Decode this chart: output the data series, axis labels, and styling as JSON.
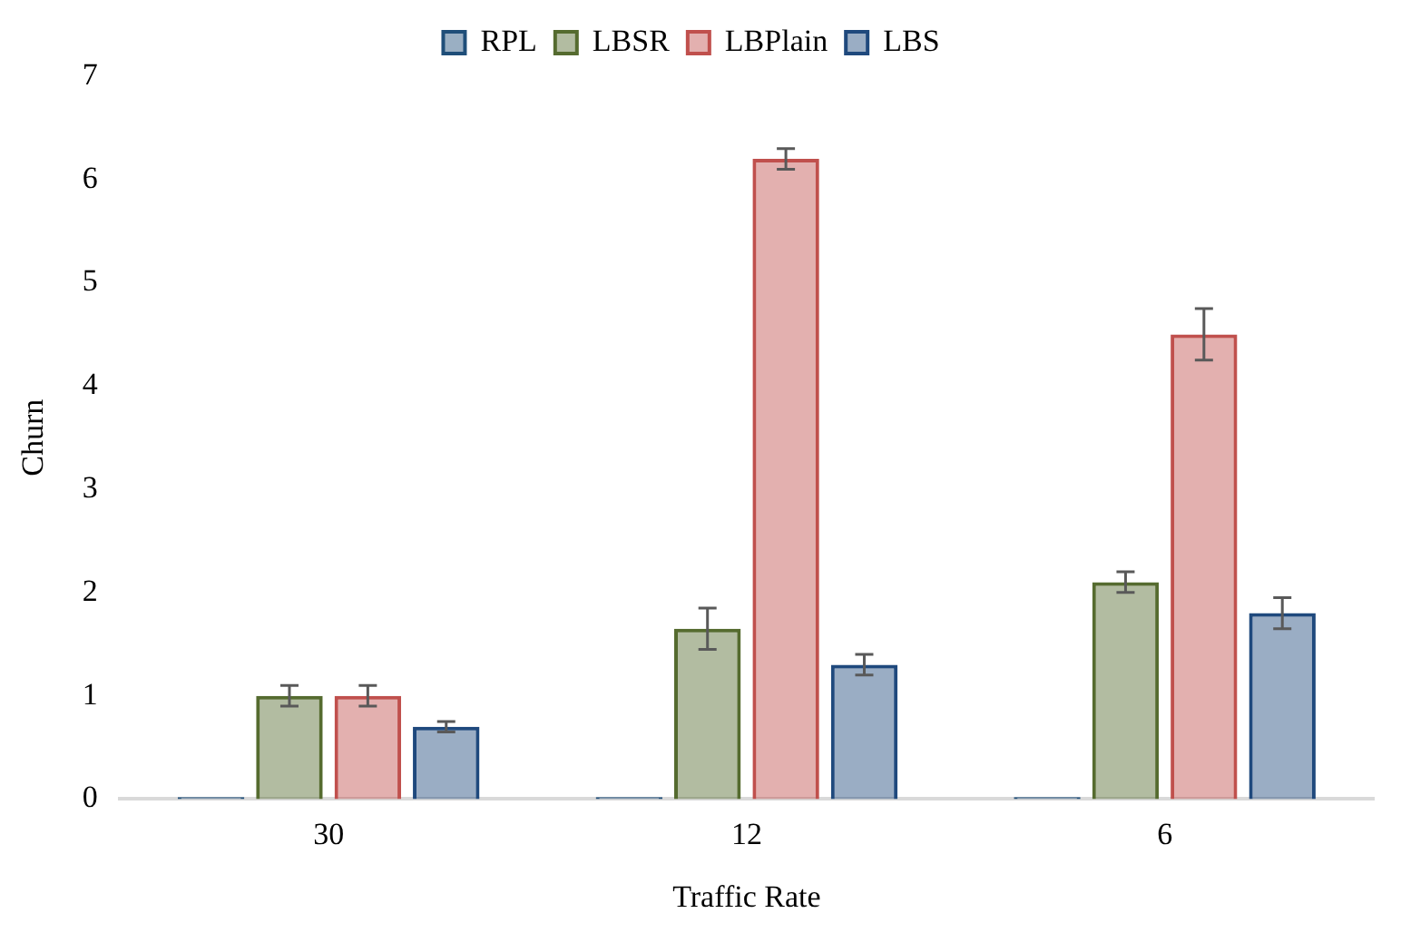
{
  "chart_data": {
    "type": "bar",
    "xlabel": "Traffic Rate",
    "ylabel": "Churn",
    "categories": [
      "30",
      "12",
      "6"
    ],
    "series": [
      {
        "name": "RPL",
        "color": "#1f4e79",
        "values": [
          0.02,
          0.02,
          0.02
        ]
      },
      {
        "name": "LBSR",
        "color": "#556b2f",
        "values": [
          1.0,
          1.65,
          2.1
        ],
        "errors": [
          0.1,
          0.2,
          0.1
        ]
      },
      {
        "name": "LBPlain",
        "color": "#c0504d",
        "values": [
          1.0,
          6.2,
          4.5
        ],
        "errors": [
          0.1,
          0.1,
          0.25
        ]
      },
      {
        "name": "LBS",
        "color": "#1f497d",
        "values": [
          0.7,
          1.3,
          1.8
        ],
        "errors": [
          0.05,
          0.1,
          0.15
        ]
      }
    ],
    "ylim": [
      0,
      7
    ],
    "yticks": [
      0,
      1,
      2,
      3,
      4,
      5,
      6,
      7
    ],
    "grid": false,
    "legend": "top"
  }
}
